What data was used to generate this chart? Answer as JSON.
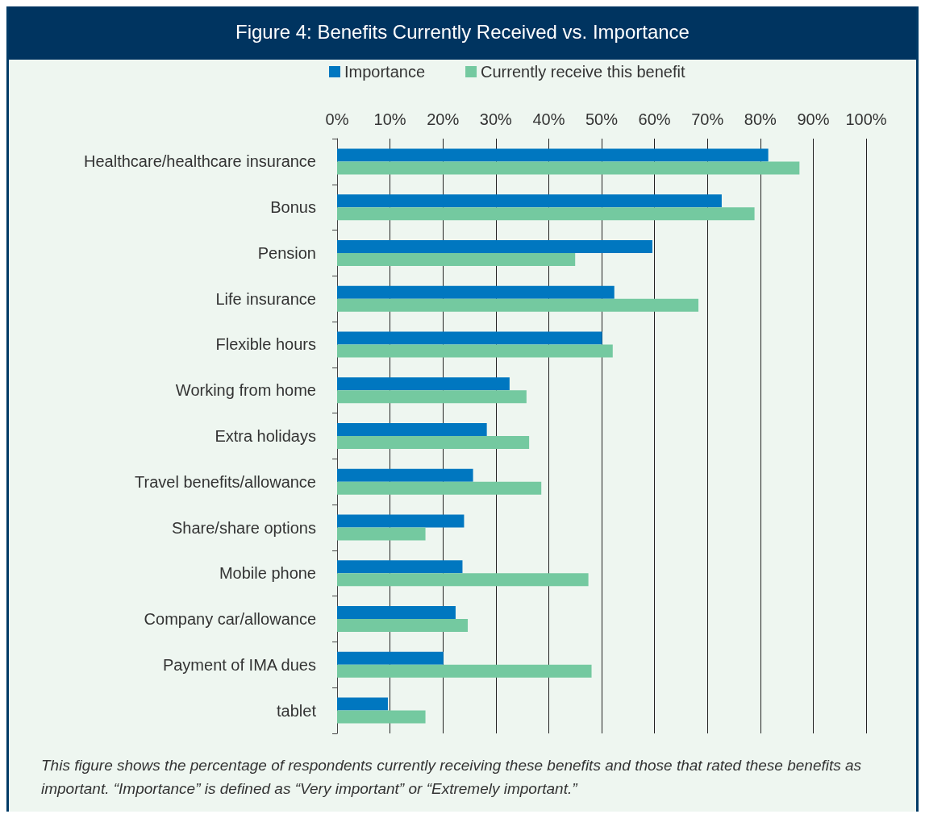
{
  "chart_data": {
    "type": "bar",
    "orientation": "horizontal",
    "title": "Figure 4: Benefits Currently Received vs. Importance",
    "categories": [
      "Healthcare/healthcare insurance",
      "Bonus",
      "Pension",
      "Life insurance",
      "Flexible hours",
      "Working from home",
      "Extra holidays",
      "Travel benefits/allowance",
      "Share/share options",
      "Mobile phone",
      "Company car/allowance",
      "Payment of IMA dues",
      "tablet"
    ],
    "series": [
      {
        "name": "Importance",
        "color": "#0077c0",
        "values": [
          81.5,
          72.7,
          59.6,
          52.4,
          50.1,
          32.6,
          28.3,
          25.7,
          24.0,
          23.7,
          22.4,
          20.1,
          9.6
        ]
      },
      {
        "name": "Currently receive this benefit",
        "color": "#74c9a0",
        "values": [
          87.4,
          78.9,
          45.0,
          68.3,
          52.1,
          35.8,
          36.3,
          38.6,
          16.7,
          47.5,
          24.7,
          48.1,
          16.7
        ]
      }
    ],
    "xlim": [
      0,
      100
    ],
    "xticks": [
      {
        "value": 0,
        "label": "0%"
      },
      {
        "value": 10,
        "label": "10%"
      },
      {
        "value": 20,
        "label": "20%"
      },
      {
        "value": 30,
        "label": "30%"
      },
      {
        "value": 40,
        "label": "40%"
      },
      {
        "value": 50,
        "label": "50%"
      },
      {
        "value": 60,
        "label": "60%"
      },
      {
        "value": 70,
        "label": "70%"
      },
      {
        "value": 80,
        "label": "80%"
      },
      {
        "value": 90,
        "label": "90%"
      },
      {
        "value": 100,
        "label": "100%"
      }
    ],
    "grid": "x",
    "legend": "top",
    "annotations": [
      "This figure shows the percentage of respondents currently receiving these benefits and those that rated these benefits as important. “Importance” is defined as “Very important” or “Extremely important.”"
    ]
  }
}
